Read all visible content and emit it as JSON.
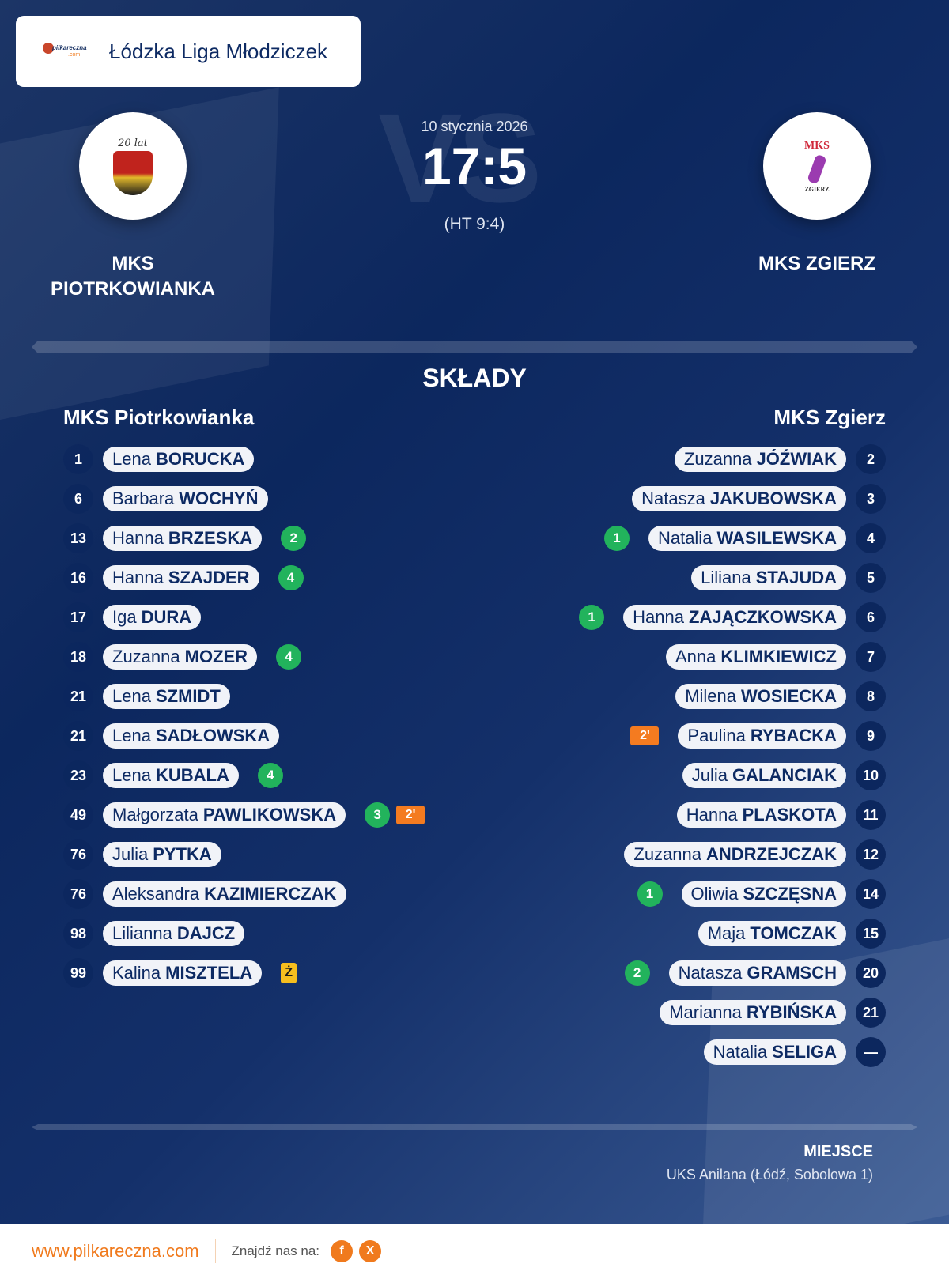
{
  "league": {
    "logo": "pilkareczna-logo",
    "logo_text_top": "pilkareczna",
    "logo_text_bottom": ".com",
    "title": "Łódzka Liga Młodziczek"
  },
  "match": {
    "date": "10 stycznia 2026",
    "score": "17:5",
    "halftime": "(HT 9:4)",
    "watermark": "VS"
  },
  "home": {
    "name_upper_line1": "MKS",
    "name_upper_line2": "PIOTRKOWIANKA",
    "name": "MKS Piotrkowianka",
    "logo_text": "20 lat",
    "players": [
      {
        "number": "1",
        "first": "Lena",
        "last": "BORUCKA"
      },
      {
        "number": "6",
        "first": "Barbara",
        "last": "WOCHYŃ"
      },
      {
        "number": "13",
        "first": "Hanna",
        "last": "BRZESKA",
        "goals": "2"
      },
      {
        "number": "16",
        "first": "Hanna",
        "last": "SZAJDER",
        "goals": "4"
      },
      {
        "number": "17",
        "first": "Iga",
        "last": "DURA"
      },
      {
        "number": "18",
        "first": "Zuzanna",
        "last": "MOZER",
        "goals": "4"
      },
      {
        "number": "21",
        "first": "Lena",
        "last": "SZMIDT"
      },
      {
        "number": "21",
        "first": "Lena",
        "last": "SADŁOWSKA"
      },
      {
        "number": "23",
        "first": "Lena",
        "last": "KUBALA",
        "goals": "4"
      },
      {
        "number": "49",
        "first": "Małgorzata",
        "last": "PAWLIKOWSKA",
        "goals": "3",
        "penalty": "2'"
      },
      {
        "number": "76",
        "first": "Julia",
        "last": "PYTKA"
      },
      {
        "number": "76",
        "first": "Aleksandra",
        "last": "KAZIMIERCZAK"
      },
      {
        "number": "98",
        "first": "Lilianna",
        "last": "DAJCZ"
      },
      {
        "number": "99",
        "first": "Kalina",
        "last": "MISZTELA",
        "card": "Ż"
      }
    ]
  },
  "away": {
    "name_upper": "MKS ZGIERZ",
    "name": "MKS Zgierz",
    "logo_text_top": "MKS",
    "logo_text_bottom": "ZGIERZ",
    "players": [
      {
        "number": "2",
        "first": "Zuzanna",
        "last": "JÓŹWIAK"
      },
      {
        "number": "3",
        "first": "Natasza",
        "last": "JAKUBOWSKA"
      },
      {
        "number": "4",
        "first": "Natalia",
        "last": "WASILEWSKA",
        "goals": "1"
      },
      {
        "number": "5",
        "first": "Liliana",
        "last": "STAJUDA"
      },
      {
        "number": "6",
        "first": "Hanna",
        "last": "ZAJĄCZKOWSKA",
        "goals": "1"
      },
      {
        "number": "7",
        "first": "Anna",
        "last": "KLIMKIEWICZ"
      },
      {
        "number": "8",
        "first": "Milena",
        "last": "WOSIECKA"
      },
      {
        "number": "9",
        "first": "Paulina",
        "last": "RYBACKA",
        "penalty": "2'"
      },
      {
        "number": "10",
        "first": "Julia",
        "last": "GALANCIAK"
      },
      {
        "number": "11",
        "first": "Hanna",
        "last": "PLASKOTA"
      },
      {
        "number": "12",
        "first": "Zuzanna",
        "last": "ANDRZEJCZAK"
      },
      {
        "number": "14",
        "first": "Oliwia",
        "last": "SZCZĘSNA",
        "goals": "1"
      },
      {
        "number": "15",
        "first": "Maja",
        "last": "TOMCZAK"
      },
      {
        "number": "20",
        "first": "Natasza",
        "last": "GRAMSCH",
        "goals": "2"
      },
      {
        "number": "21",
        "first": "Marianna",
        "last": "RYBIŃSKA"
      },
      {
        "number": "—",
        "first": "Natalia",
        "last": "SELIGA"
      }
    ]
  },
  "section": {
    "lineups_title": "SKŁADY"
  },
  "venue": {
    "label": "MIEJSCE",
    "value": "UKS Anilana (Łódź, Sobolowa 1)"
  },
  "footer": {
    "site": "www.pilkareczna.com",
    "find_us": "Znajdź nas na:",
    "facebook": "f",
    "x": "X"
  },
  "colors": {
    "navy": "#0c275e",
    "goal_green": "#22b35c",
    "penalty_orange": "#f47b20",
    "yellow_card": "#f6be1e",
    "brand_orange": "#f07a1d"
  }
}
